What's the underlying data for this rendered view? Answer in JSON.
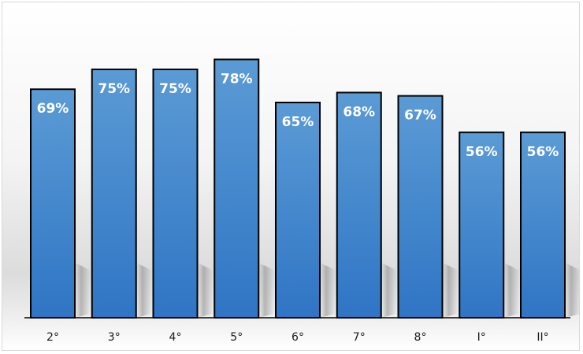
{
  "chart_data": {
    "type": "bar",
    "categories": [
      "2°",
      "3°",
      "4°",
      "5°",
      "6°",
      "7°",
      "8°",
      "I°",
      "II°"
    ],
    "values": [
      69,
      75,
      75,
      78,
      65,
      68,
      67,
      56,
      56
    ],
    "data_labels": [
      "69%",
      "75%",
      "75%",
      "78%",
      "65%",
      "68%",
      "67%",
      "56%",
      "56%"
    ],
    "title": "",
    "xlabel": "",
    "ylabel": "",
    "ylim": [
      0,
      100
    ],
    "grid": false,
    "legend": "none",
    "colors": {
      "bar_top": "#5b9bd5",
      "bar_bottom": "#2f75c4",
      "bar_outline": "#000000"
    }
  }
}
